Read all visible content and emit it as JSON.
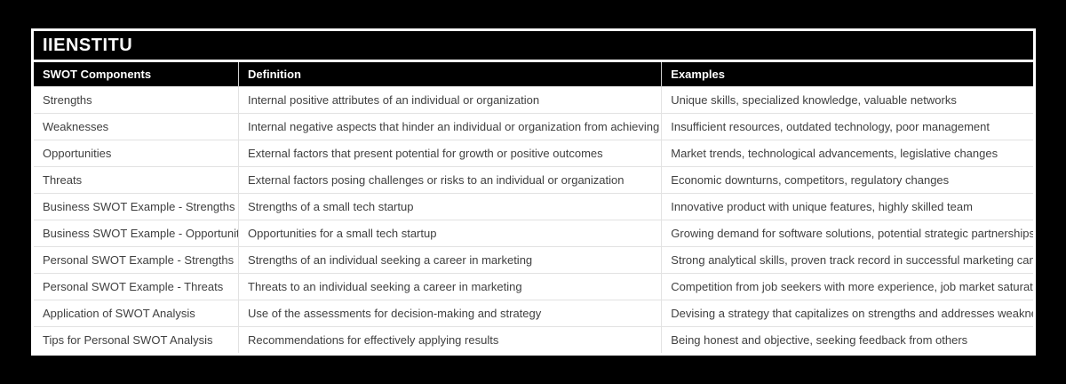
{
  "brand": {
    "title": "IIENSTITU"
  },
  "colors": {
    "page_background": "#000000",
    "bar_background": "#000000",
    "bar_text": "#ffffff",
    "body_text": "#404040",
    "row_divider": "#e2e2e2",
    "card_background": "#ffffff"
  },
  "table": {
    "columns": [
      "SWOT Components",
      "Definition",
      "Examples"
    ],
    "rows": [
      {
        "component": "Strengths",
        "definition": "Internal positive attributes of an individual or organization",
        "example": "Unique skills, specialized knowledge, valuable networks"
      },
      {
        "component": "Weaknesses",
        "definition": "Internal negative aspects that hinder an individual or organization from achieving its goals",
        "example": "Insufficient resources, outdated technology, poor management"
      },
      {
        "component": "Opportunities",
        "definition": "External factors that present potential for growth or positive outcomes",
        "example": "Market trends, technological advancements, legislative changes"
      },
      {
        "component": "Threats",
        "definition": "External factors posing challenges or risks to an individual or organization",
        "example": "Economic downturns, competitors, regulatory changes"
      },
      {
        "component": "Business SWOT Example - Strengths",
        "definition": "Strengths of a small tech startup",
        "example": "Innovative product with unique features, highly skilled team"
      },
      {
        "component": "Business SWOT Example - Opportunities",
        "definition": "Opportunities for a small tech startup",
        "example": "Growing demand for software solutions, potential strategic partnerships"
      },
      {
        "component": "Personal SWOT Example - Strengths",
        "definition": "Strengths of an individual seeking a career in marketing",
        "example": "Strong analytical skills, proven track record in successful marketing campaigns"
      },
      {
        "component": "Personal SWOT Example - Threats",
        "definition": "Threats to an individual seeking a career in marketing",
        "example": "Competition from job seekers with more experience, job market saturation"
      },
      {
        "component": "Application of SWOT Analysis",
        "definition": "Use of the assessments for decision-making and strategy",
        "example": "Devising a strategy that capitalizes on strengths and addresses weaknesses"
      },
      {
        "component": "Tips for Personal SWOT Analysis",
        "definition": "Recommendations for effectively applying results",
        "example": "Being honest and objective, seeking feedback from others"
      }
    ]
  }
}
